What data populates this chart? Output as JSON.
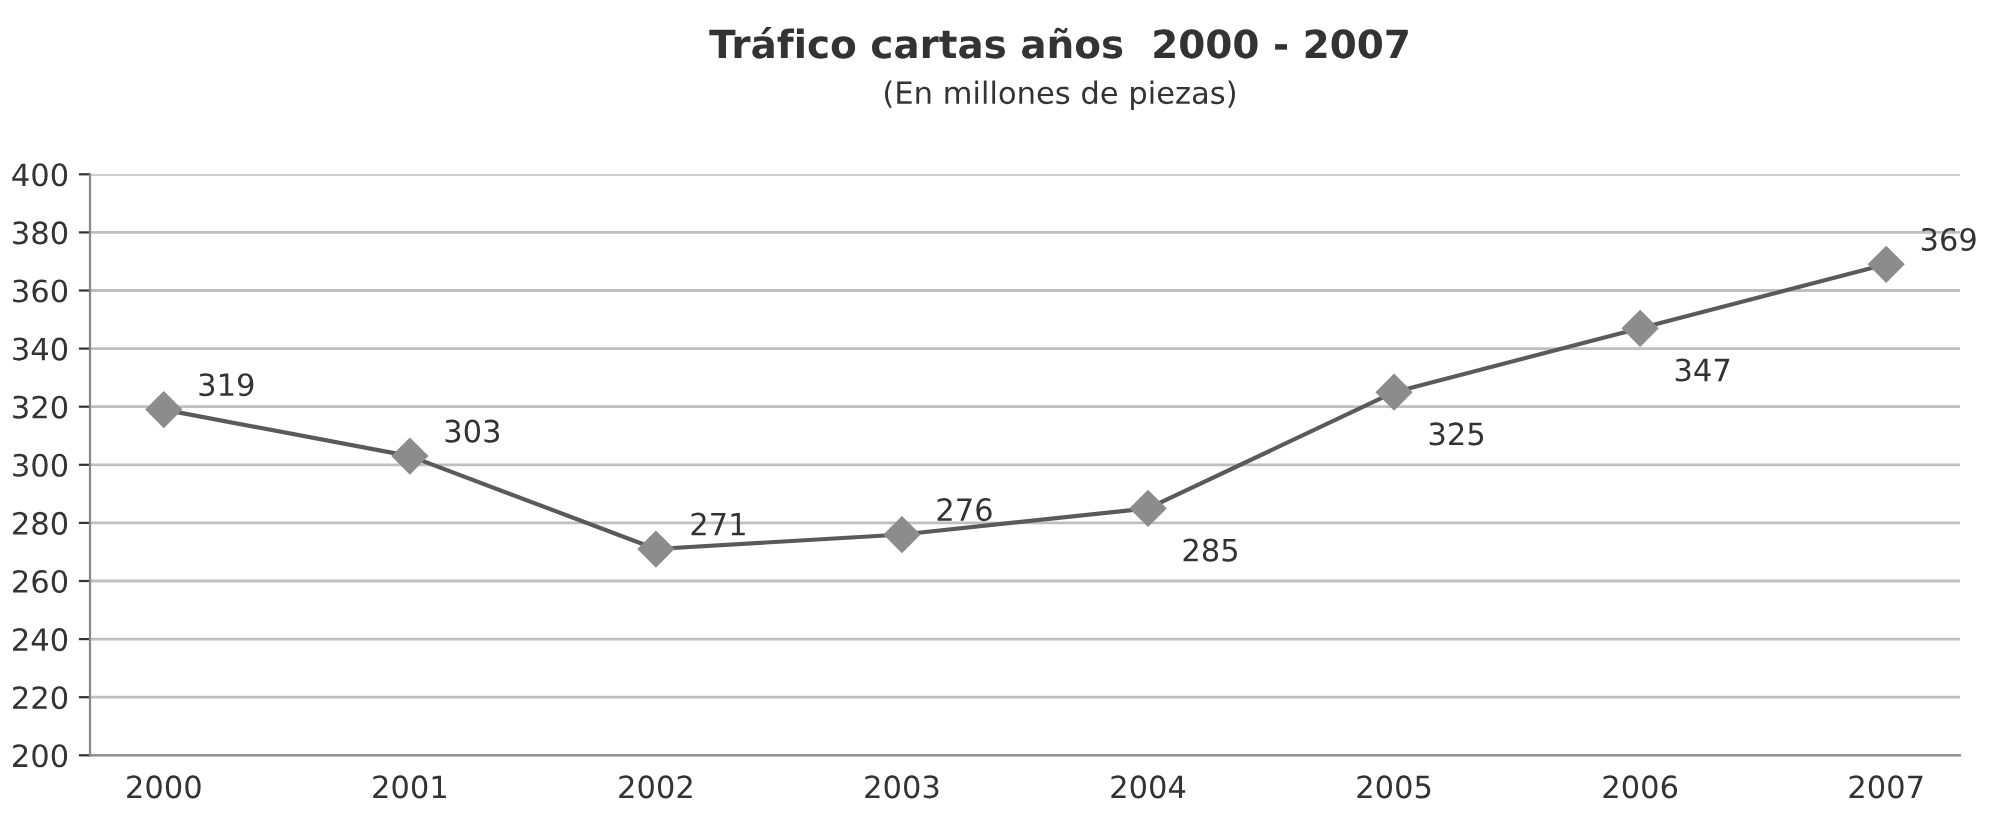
{
  "chart_data": {
    "type": "line",
    "title": "Tráfico cartas años  2000 - 2007",
    "subtitle": "(En millones de piezas)",
    "categories": [
      "2000",
      "2001",
      "2002",
      "2003",
      "2004",
      "2005",
      "2006",
      "2007"
    ],
    "series": [
      {
        "color": "#5a5a5a",
        "values": [
          319,
          303,
          271,
          276,
          285,
          325,
          347,
          369
        ]
      }
    ],
    "ylim": [
      200,
      400
    ],
    "yticks": [
      200,
      220,
      240,
      260,
      280,
      300,
      320,
      340,
      360,
      380,
      400
    ],
    "grid": "y",
    "marker": "diamond",
    "line_style": "solid",
    "data_labels": true,
    "legend": false
  }
}
